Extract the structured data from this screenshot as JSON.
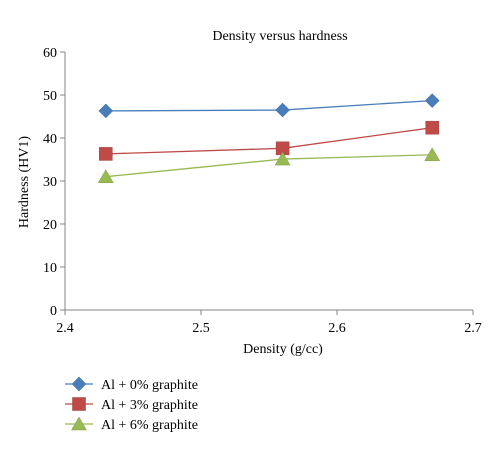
{
  "chart_data": {
    "type": "line",
    "title": "Density versus hardness",
    "xlabel": "Density (g/cc)",
    "ylabel": "Hardness (HV1)",
    "xlim": [
      2.4,
      2.7
    ],
    "ylim": [
      0,
      60
    ],
    "x_ticks": [
      "2.4",
      "2.5",
      "2.6",
      "2.7"
    ],
    "y_ticks": [
      "0",
      "10",
      "20",
      "30",
      "40",
      "50",
      "60"
    ],
    "grid": false,
    "legend_position": "bottom-left",
    "series": [
      {
        "name": "Al + 0% graphite",
        "marker": "diamond",
        "color": "#4A7EBB",
        "x": [
          2.43,
          2.56,
          2.67
        ],
        "y": [
          46.3,
          46.5,
          48.7
        ]
      },
      {
        "name": "Al + 3% graphite",
        "marker": "square",
        "color": "#BE4B48",
        "x": [
          2.43,
          2.56,
          2.67
        ],
        "y": [
          36.3,
          37.6,
          42.4
        ]
      },
      {
        "name": "Al + 6% graphite",
        "marker": "triangle",
        "color": "#98B954",
        "x": [
          2.43,
          2.56,
          2.67
        ],
        "y": [
          31.0,
          35.1,
          36.1
        ]
      }
    ]
  }
}
